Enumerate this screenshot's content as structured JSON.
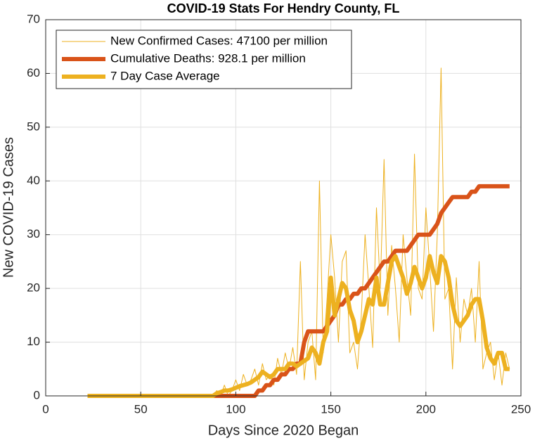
{
  "chart_data": {
    "type": "line",
    "title": "COVID-19 Stats For Hendry County, FL",
    "xlabel": "Days Since 2020 Began",
    "ylabel": "New COVID-19 Cases",
    "xlim": [
      0,
      250
    ],
    "xticks": [
      0,
      50,
      100,
      150,
      200,
      250
    ],
    "ylim": [
      0,
      70
    ],
    "yticks": [
      0,
      10,
      20,
      30,
      40,
      50,
      60,
      70
    ],
    "grid": true,
    "legend": "upper-left",
    "x": [
      22,
      30,
      40,
      50,
      60,
      70,
      80,
      86,
      88,
      90,
      92,
      94,
      96,
      98,
      100,
      102,
      104,
      106,
      108,
      110,
      112,
      114,
      116,
      118,
      120,
      122,
      124,
      126,
      128,
      130,
      132,
      134,
      136,
      138,
      140,
      142,
      144,
      146,
      148,
      150,
      152,
      154,
      156,
      158,
      160,
      162,
      164,
      166,
      168,
      170,
      172,
      174,
      176,
      178,
      180,
      182,
      184,
      186,
      188,
      190,
      192,
      194,
      196,
      198,
      200,
      202,
      204,
      206,
      208,
      210,
      212,
      214,
      216,
      218,
      220,
      222,
      224,
      226,
      228,
      230,
      232,
      234,
      236,
      238,
      240,
      242,
      244
    ],
    "series": [
      {
        "name": "New Confirmed Cases: 47100 per million",
        "color": "#edb120",
        "line_width": 1,
        "values": [
          0,
          0,
          0,
          0,
          0,
          0,
          0,
          0,
          0,
          1,
          0,
          2,
          0,
          1,
          3,
          1,
          4,
          2,
          3,
          5,
          2,
          6,
          3,
          4,
          2,
          7,
          4,
          8,
          5,
          9,
          4,
          25,
          3,
          10,
          12,
          3,
          40,
          8,
          18,
          30,
          22,
          10,
          25,
          27,
          8,
          10,
          5,
          15,
          30,
          20,
          9,
          35,
          20,
          44,
          15,
          28,
          20,
          10,
          30,
          22,
          15,
          45,
          20,
          18,
          35,
          24,
          12,
          30,
          61,
          18,
          20,
          5,
          22,
          10,
          18,
          15,
          20,
          10,
          25,
          5,
          8,
          10,
          3,
          8,
          2,
          8,
          5
        ]
      },
      {
        "name": "Cumulative Deaths: 928.1 per million",
        "color": "#d95319",
        "line_width": 6,
        "values": [
          0,
          0,
          0,
          0,
          0,
          0,
          0,
          0,
          0,
          0,
          0,
          0,
          0,
          0,
          0,
          0,
          0,
          0,
          0,
          0,
          1,
          1,
          2,
          2,
          3,
          3,
          4,
          4,
          5,
          5,
          6,
          6,
          10,
          12,
          12,
          12,
          12,
          12,
          13,
          14,
          15,
          17,
          17,
          18,
          18,
          19,
          19,
          20,
          20,
          21,
          22,
          23,
          24,
          25,
          25,
          26,
          27,
          27,
          27,
          27,
          28,
          29,
          30,
          30,
          30,
          30,
          31,
          32,
          34,
          35,
          36,
          37,
          37,
          37,
          37,
          37,
          38,
          38,
          39,
          39,
          39,
          39,
          39,
          39,
          39,
          39,
          39
        ]
      },
      {
        "name": "7 Day Case Average",
        "color": "#edb120",
        "line_width": 6,
        "values": [
          0,
          0,
          0,
          0,
          0,
          0,
          0,
          0,
          0,
          0.5,
          0.7,
          1,
          1,
          1.2,
          1.5,
          1.8,
          2,
          2.2,
          2.5,
          3,
          3.5,
          4.5,
          4,
          3.5,
          4,
          5,
          5,
          5,
          6,
          6,
          5.5,
          6,
          6.5,
          7,
          9,
          8,
          6,
          10,
          12,
          22,
          15,
          18,
          21,
          20,
          16,
          14,
          10,
          12,
          15,
          18,
          17,
          22,
          17,
          17,
          21,
          25,
          26,
          24,
          22,
          19,
          21,
          24,
          22,
          20,
          22,
          26,
          23,
          21,
          26,
          25,
          22,
          17,
          14,
          13,
          14,
          15,
          17,
          18,
          18,
          14,
          9,
          7,
          6,
          8,
          8,
          5,
          5
        ]
      }
    ]
  }
}
